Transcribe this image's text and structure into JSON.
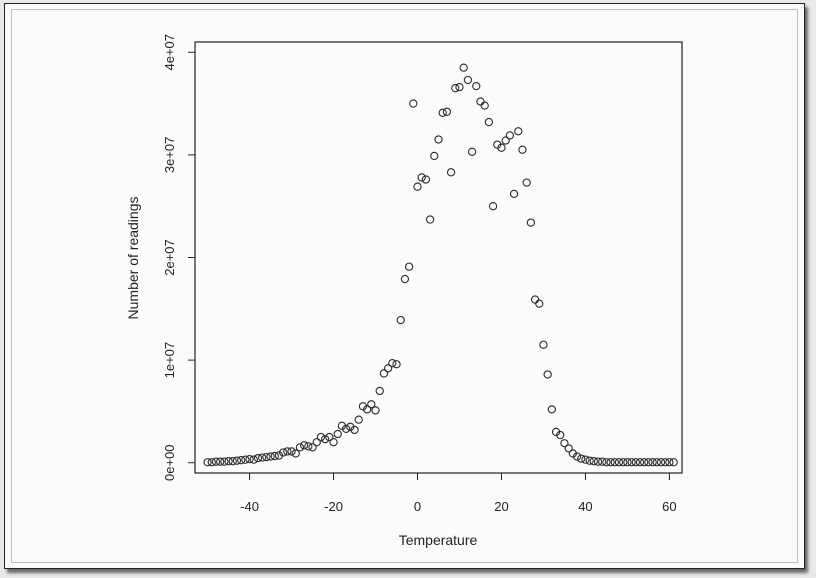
{
  "chart_data": {
    "type": "scatter",
    "title": "",
    "xlabel": "Temperature",
    "ylabel": "Number of readings",
    "xlim": [
      -53,
      63
    ],
    "ylim": [
      -1000000,
      41000000
    ],
    "x_ticks": [
      -40,
      -20,
      0,
      20,
      40,
      60
    ],
    "x_tick_labels": [
      "-40",
      "-20",
      "0",
      "20",
      "40",
      "60"
    ],
    "y_ticks": [
      0,
      10000000,
      20000000,
      30000000,
      40000000
    ],
    "y_tick_labels": [
      "0e+00",
      "1e+07",
      "2e+07",
      "3e+07",
      "4e+07"
    ],
    "grid": false,
    "marker": "open-circle",
    "colors": {
      "marker": "#2a2a2a",
      "axis": "#222222"
    },
    "x": [
      -50,
      -49,
      -48,
      -47,
      -46,
      -45,
      -44,
      -43,
      -42,
      -41,
      -40,
      -39,
      -38,
      -37,
      -36,
      -35,
      -34,
      -33,
      -32,
      -31,
      -30,
      -29,
      -28,
      -27,
      -26,
      -25,
      -24,
      -23,
      -22,
      -21,
      -20,
      -19,
      -18,
      -17,
      -16,
      -15,
      -14,
      -13,
      -12,
      -11,
      -10,
      -9,
      -8,
      -7,
      -6,
      -5,
      -4,
      -3,
      -2,
      -1,
      0,
      1,
      2,
      3,
      4,
      5,
      6,
      7,
      8,
      9,
      10,
      11,
      12,
      13,
      14,
      15,
      16,
      17,
      18,
      19,
      20,
      21,
      22,
      23,
      24,
      25,
      26,
      27,
      28,
      29,
      30,
      31,
      32,
      33,
      34,
      35,
      36,
      37,
      38,
      39,
      40,
      41,
      42,
      43,
      44,
      45,
      46,
      47,
      48,
      49,
      50,
      51,
      52,
      53,
      54,
      55,
      56,
      57,
      58,
      59,
      60,
      61
    ],
    "y": [
      0.05,
      0.05,
      0.1,
      0.1,
      0.1,
      0.15,
      0.15,
      0.2,
      0.25,
      0.3,
      0.35,
      0.3,
      0.45,
      0.5,
      0.55,
      0.6,
      0.65,
      0.7,
      1.0,
      1.1,
      1.1,
      0.9,
      1.5,
      1.7,
      1.6,
      1.5,
      2.0,
      2.5,
      2.3,
      2.5,
      2.0,
      2.8,
      3.6,
      3.3,
      3.5,
      3.2,
      4.2,
      5.5,
      5.2,
      5.7,
      5.1,
      7.0,
      8.7,
      9.2,
      9.7,
      9.6,
      13.9,
      17.9,
      19.1,
      35.0,
      26.9,
      27.8,
      27.6,
      23.7,
      29.9,
      31.5,
      34.1,
      34.2,
      28.3,
      36.5,
      36.6,
      38.5,
      37.3,
      30.3,
      36.7,
      35.2,
      34.8,
      33.2,
      25.0,
      31.0,
      30.7,
      31.4,
      31.9,
      26.2,
      32.3,
      30.5,
      27.3,
      23.4,
      15.9,
      15.5,
      11.5,
      8.6,
      5.2,
      3.0,
      2.7,
      1.9,
      1.4,
      0.9,
      0.6,
      0.4,
      0.3,
      0.2,
      0.15,
      0.1,
      0.1,
      0.05,
      0.05,
      0.05,
      0.05,
      0.05,
      0.05,
      0.05,
      0.05,
      0.05,
      0.05,
      0.05,
      0.05,
      0.05,
      0.05,
      0.05,
      0.05,
      0.05
    ],
    "y_unit": "1e+06"
  }
}
